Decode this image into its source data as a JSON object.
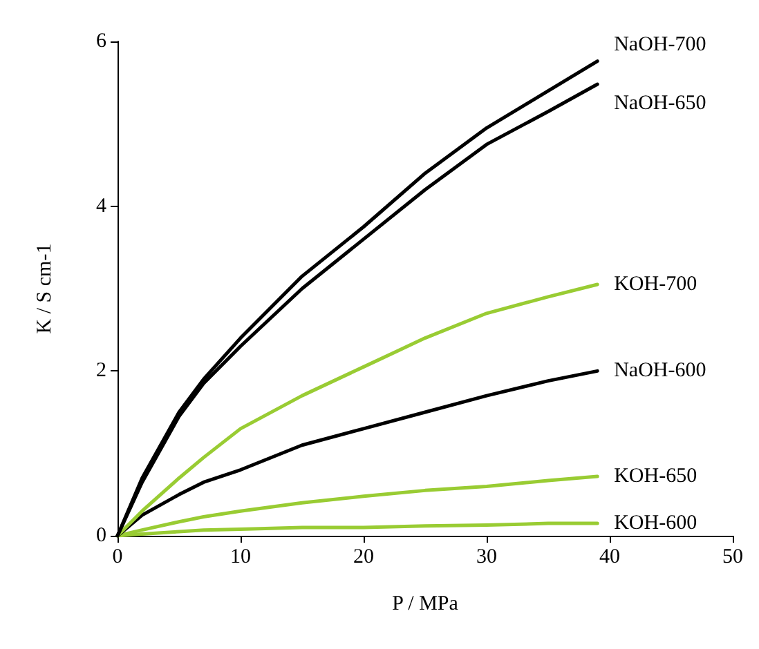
{
  "chart_data": {
    "type": "line",
    "xlabel": "P / MPa",
    "ylabel": "K / S cm-1",
    "xlim": [
      0,
      50
    ],
    "xticks": [
      0,
      10,
      20,
      30,
      40,
      50
    ],
    "ylim": [
      0,
      6
    ],
    "yticks": [
      0,
      2,
      4,
      6
    ],
    "grid": false,
    "legend": false,
    "marker": "none",
    "line_style": "solid",
    "x": [
      0,
      2,
      5,
      7,
      10,
      15,
      20,
      25,
      30,
      35,
      39
    ],
    "series": [
      {
        "name": "NaOH-700",
        "color": "#000000",
        "values": [
          0,
          0.7,
          1.5,
          1.9,
          2.4,
          3.15,
          3.75,
          4.4,
          4.95,
          5.4,
          5.76
        ]
      },
      {
        "name": "NaOH-650",
        "color": "#000000",
        "values": [
          0,
          0.65,
          1.45,
          1.85,
          2.3,
          3.0,
          3.6,
          4.2,
          4.75,
          5.15,
          5.48
        ]
      },
      {
        "name": "KOH-700",
        "color": "#99cc33",
        "values": [
          0,
          0.3,
          0.7,
          0.95,
          1.3,
          1.7,
          2.05,
          2.4,
          2.7,
          2.9,
          3.05
        ]
      },
      {
        "name": "NaOH-600",
        "color": "#000000",
        "values": [
          0,
          0.25,
          0.5,
          0.65,
          0.8,
          1.1,
          1.3,
          1.5,
          1.7,
          1.88,
          2.0
        ]
      },
      {
        "name": "KOH-650",
        "color": "#99cc33",
        "values": [
          0,
          0.07,
          0.17,
          0.23,
          0.3,
          0.4,
          0.48,
          0.55,
          0.6,
          0.67,
          0.72
        ]
      },
      {
        "name": "KOH-600",
        "color": "#99cc33",
        "values": [
          0,
          0.02,
          0.05,
          0.07,
          0.08,
          0.1,
          0.1,
          0.12,
          0.13,
          0.15,
          0.15
        ]
      }
    ]
  }
}
